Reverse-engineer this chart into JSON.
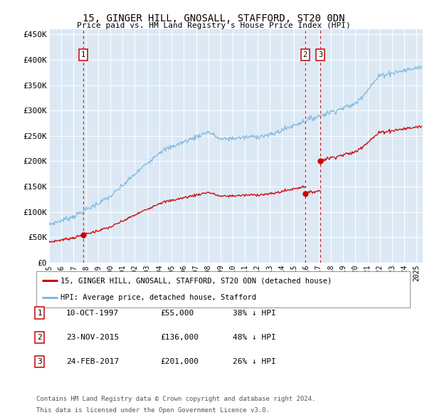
{
  "title": "15, GINGER HILL, GNOSALL, STAFFORD, ST20 0DN",
  "subtitle": "Price paid vs. HM Land Registry's House Price Index (HPI)",
  "plot_bg_color": "#dce9f5",
  "hpi_color": "#7fb9e0",
  "price_color": "#cc0000",
  "vline_color": "#cc0000",
  "sales": [
    {
      "label": "1",
      "date_num": 1997.78,
      "price": 55000
    },
    {
      "label": "2",
      "date_num": 2015.9,
      "price": 136000
    },
    {
      "label": "3",
      "date_num": 2017.15,
      "price": 201000
    }
  ],
  "sales_table": [
    {
      "num": "1",
      "date": "10-OCT-1997",
      "price": "£55,000",
      "hpi": "38% ↓ HPI"
    },
    {
      "num": "2",
      "date": "23-NOV-2015",
      "price": "£136,000",
      "hpi": "48% ↓ HPI"
    },
    {
      "num": "3",
      "date": "24-FEB-2017",
      "price": "£201,000",
      "hpi": "26% ↓ HPI"
    }
  ],
  "legend_entries": [
    {
      "label": "15, GINGER HILL, GNOSALL, STAFFORD, ST20 0DN (detached house)",
      "color": "#cc0000"
    },
    {
      "label": "HPI: Average price, detached house, Stafford",
      "color": "#7fb9e0"
    }
  ],
  "footer": [
    "Contains HM Land Registry data © Crown copyright and database right 2024.",
    "This data is licensed under the Open Government Licence v3.0."
  ],
  "ylim": [
    0,
    460000
  ],
  "xlim_start": 1995.0,
  "xlim_end": 2025.5,
  "yticks": [
    0,
    50000,
    100000,
    150000,
    200000,
    250000,
    300000,
    350000,
    400000,
    450000
  ],
  "ytick_labels": [
    "£0",
    "£50K",
    "£100K",
    "£150K",
    "£200K",
    "£250K",
    "£300K",
    "£350K",
    "£400K",
    "£450K"
  ],
  "xticks": [
    1995,
    1996,
    1997,
    1998,
    1999,
    2000,
    2001,
    2002,
    2003,
    2004,
    2005,
    2006,
    2007,
    2008,
    2009,
    2010,
    2011,
    2012,
    2013,
    2014,
    2015,
    2016,
    2017,
    2018,
    2019,
    2020,
    2021,
    2022,
    2023,
    2024,
    2025
  ]
}
